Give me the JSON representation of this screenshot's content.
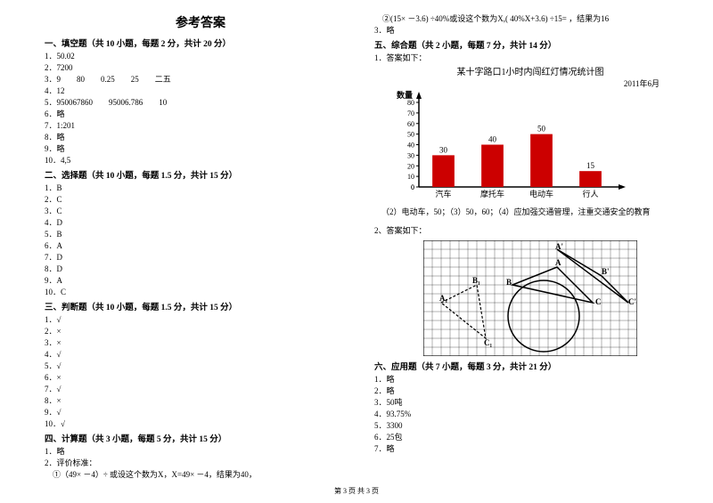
{
  "title": "参考答案",
  "footer": "第 3 页 共 3 页",
  "sec1": {
    "title": "一、填空题（共 10 小题，每题 2 分，共计 20 分）",
    "items": [
      "1．50.02",
      "2．7200",
      "3．9　　80　　0.25　　25　　二五",
      "4．12",
      "5．950067860　　95006.786　　10",
      "6．略",
      "7．1:201",
      "8．略",
      "9．略",
      "10．4,5"
    ]
  },
  "sec2": {
    "title": "二、选择题（共 10 小题，每题 1.5 分，共计 15 分）",
    "items": [
      "1．B",
      "2．C",
      "3．C",
      "4．D",
      "5．B",
      "6．A",
      "7．D",
      "8．D",
      "9．A",
      "10．C"
    ]
  },
  "sec3": {
    "title": "三、判断题（共 10 小题，每题 1.5 分，共计 15 分）",
    "items": [
      "1．√",
      "2．×",
      "3．×",
      "4．√",
      "5．√",
      "6．×",
      "7．√",
      "8．×",
      "9．√",
      "10．√"
    ]
  },
  "sec4": {
    "title": "四、计算题（共 3 小题，每题 5 分，共计 15 分）",
    "items": [
      "1．略",
      "2．评价标准：",
      "　①（49× －4）÷ 或设这个数为X，X=49× －4，结果为40，"
    ]
  },
  "sec4b": "　②(15× －3.6) ÷40%或设这个数为X,( 40%X+3.6) ÷15= ，结果为16",
  "sec4c": "3．略",
  "sec5": {
    "title": "五、综合题（共 2 小题，每题 7 分，共计 14 分）",
    "line1": "1．答案如下：",
    "chart": {
      "title": "某十字路口1小时内闯红灯情况统计图",
      "subtitle": "2011年6月",
      "ylabel": "数量",
      "ymax": 80,
      "ystep": 10,
      "categories": [
        "汽车",
        "摩托车",
        "电动车",
        "行人"
      ],
      "values": [
        30,
        40,
        50,
        15
      ],
      "bar_color": "#cc0000",
      "axis_color": "#000000",
      "bg": "#ffffff"
    },
    "caption": "（2）电动车，50；（3）50，60；（4）应加强交通管理，注重交通安全的教育",
    "line2": "2、答案如下：",
    "geom_labels": {
      "A": "A",
      "B": "B",
      "C": "C",
      "A1": "A₁",
      "B1": "B₁",
      "C1": "C₁",
      "Ap": "A'",
      "Bp": "B'",
      "Cp": "C'"
    }
  },
  "sec6": {
    "title": "六、应用题（共 7 小题，每题 3 分，共计 21 分）",
    "items": [
      "1．略",
      "2．略",
      "3．50吨",
      "4．93.75%",
      "5．3300",
      "6．25包",
      "7．略"
    ]
  }
}
